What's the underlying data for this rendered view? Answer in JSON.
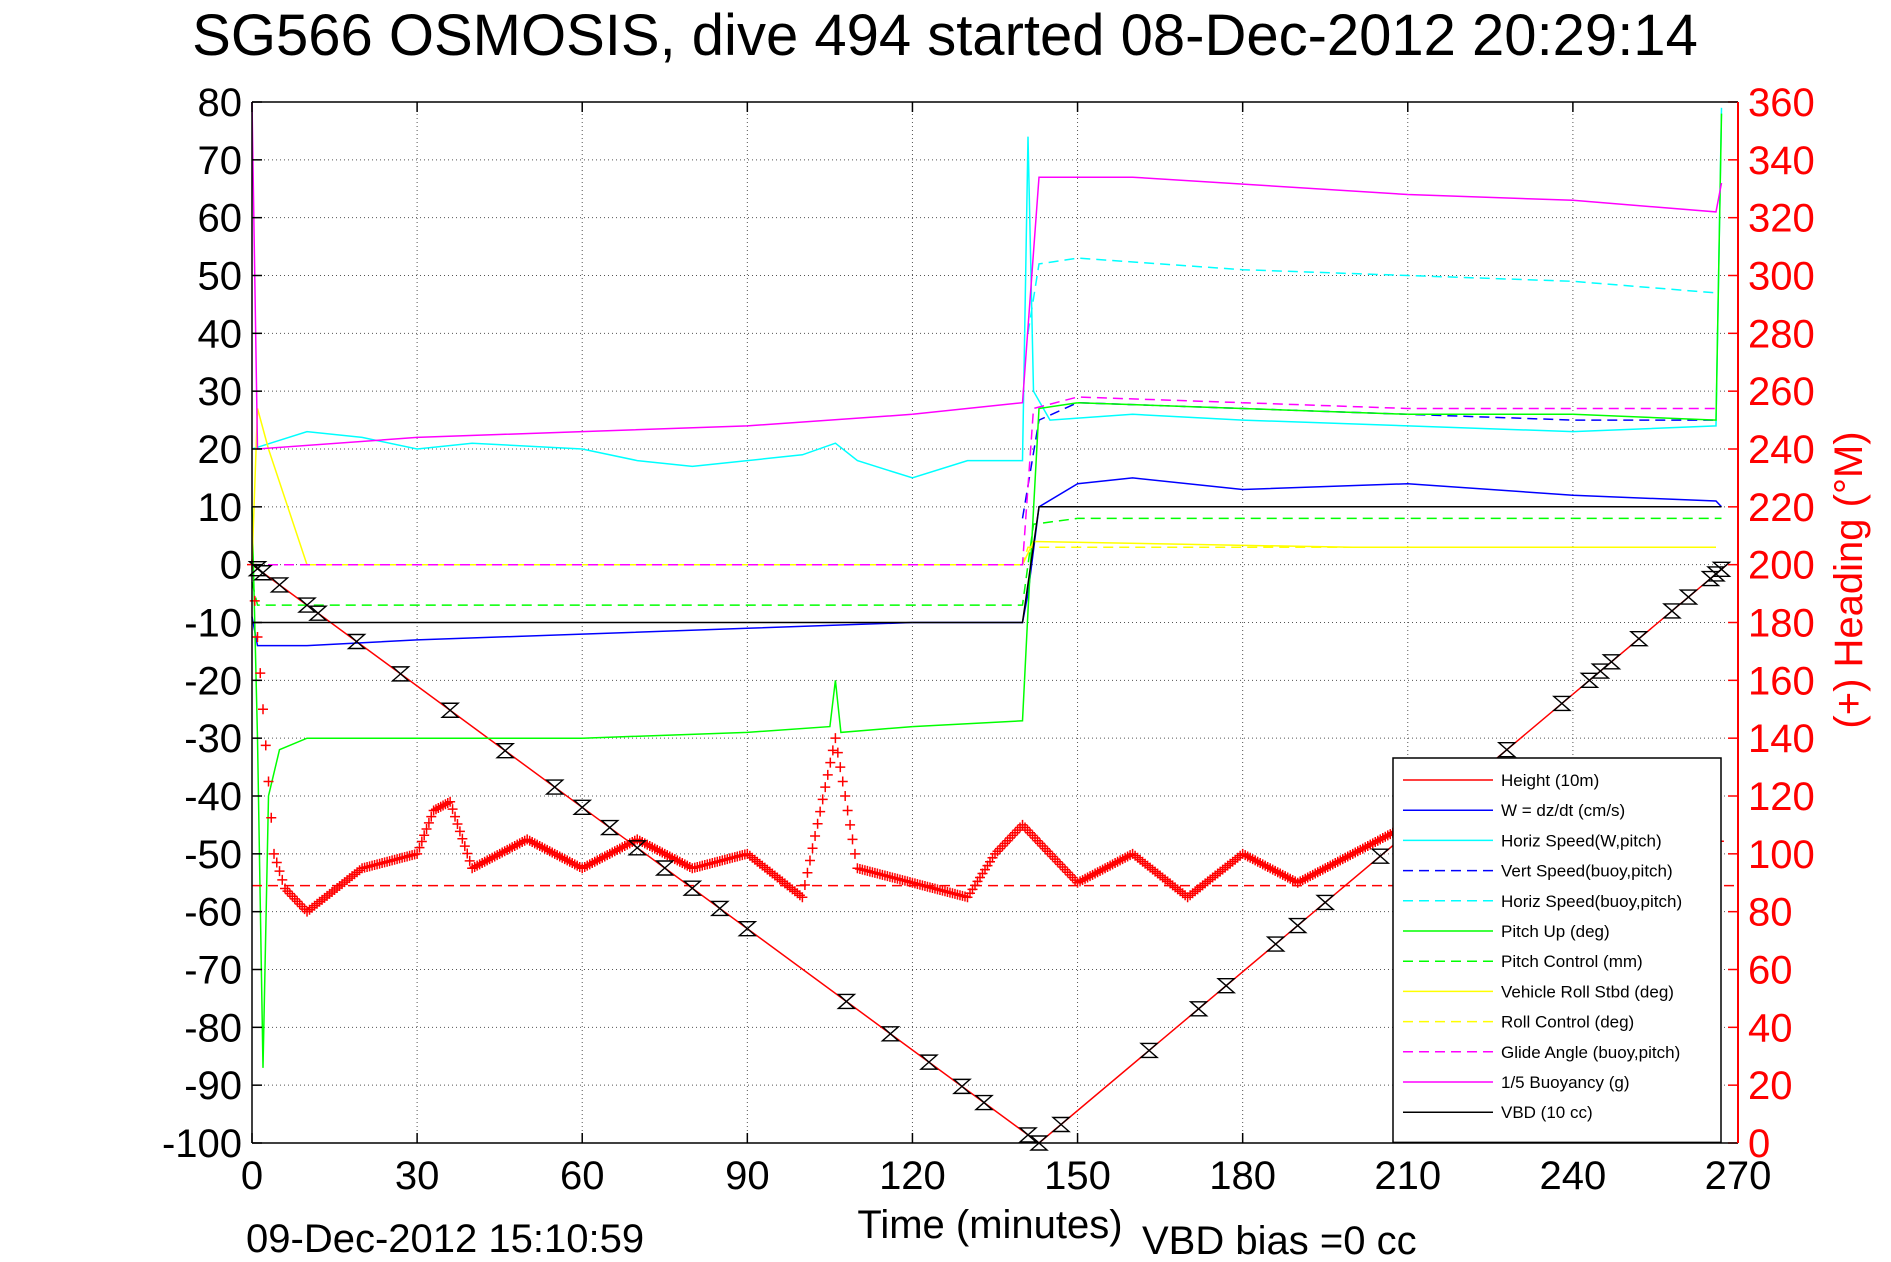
{
  "chart_data": {
    "type": "line",
    "title": "SG566 OSMOSIS, dive 494 started 08-Dec-2012 20:29:14",
    "xlabel": "Time (minutes)",
    "ylabel": "",
    "y2label": "(+) Heading (°M)",
    "footer_left": "09-Dec-2012 15:10:59",
    "footer_right": "VBD bias =0 cc",
    "xlim": [
      0,
      270
    ],
    "ylim": [
      -100,
      80
    ],
    "y2lim": [
      0,
      360
    ],
    "xticks": [
      "0",
      "30",
      "60",
      "90",
      "120",
      "150",
      "180",
      "210",
      "240",
      "270"
    ],
    "yticks": [
      "80",
      "70",
      "60",
      "50",
      "40",
      "30",
      "20",
      "10",
      "0",
      "-10",
      "-20",
      "-30",
      "-40",
      "-50",
      "-60",
      "-70",
      "-80",
      "-90",
      "-100"
    ],
    "y2ticks": [
      "360",
      "340",
      "320",
      "300",
      "280",
      "260",
      "240",
      "220",
      "200",
      "180",
      "160",
      "140",
      "120",
      "100",
      "80",
      "60",
      "40",
      "20",
      "0"
    ],
    "grid": true,
    "legend_position": "bottom-right",
    "series": [
      {
        "name": "Height (10m)",
        "color": "#ff0000",
        "style": "solid",
        "points": [
          [
            0,
            0
          ],
          [
            143,
            -100
          ],
          [
            268,
            0
          ]
        ]
      },
      {
        "name": "W = dz/dt (cm/s)",
        "color": "#0000ff",
        "style": "solid",
        "points": [
          [
            0,
            -9
          ],
          [
            1,
            -14
          ],
          [
            10,
            -14
          ],
          [
            30,
            -13
          ],
          [
            60,
            -12
          ],
          [
            90,
            -11
          ],
          [
            120,
            -10
          ],
          [
            140,
            -10
          ],
          [
            141,
            -5
          ],
          [
            143,
            10
          ],
          [
            150,
            14
          ],
          [
            160,
            15
          ],
          [
            180,
            13
          ],
          [
            210,
            14
          ],
          [
            240,
            12
          ],
          [
            266,
            11
          ],
          [
            267,
            10
          ]
        ]
      },
      {
        "name": "Horiz Speed(W,pitch)",
        "color": "#00ffff",
        "style": "solid",
        "points": [
          [
            0,
            20
          ],
          [
            10,
            23
          ],
          [
            20,
            22
          ],
          [
            30,
            20
          ],
          [
            40,
            21
          ],
          [
            60,
            20
          ],
          [
            70,
            18
          ],
          [
            80,
            17
          ],
          [
            90,
            18
          ],
          [
            100,
            19
          ],
          [
            106,
            21
          ],
          [
            110,
            18
          ],
          [
            120,
            15
          ],
          [
            130,
            18
          ],
          [
            140,
            18
          ],
          [
            141,
            74
          ],
          [
            142,
            30
          ],
          [
            145,
            25
          ],
          [
            160,
            26
          ],
          [
            180,
            25
          ],
          [
            210,
            24
          ],
          [
            240,
            23
          ],
          [
            266,
            24
          ],
          [
            267,
            79
          ]
        ]
      },
      {
        "name": "Vert Speed(buoy,pitch)",
        "color": "#0000ff",
        "style": "dashed",
        "points": [
          [
            140,
            8
          ],
          [
            143,
            25
          ],
          [
            150,
            28
          ],
          [
            180,
            27
          ],
          [
            210,
            26
          ],
          [
            240,
            25
          ],
          [
            266,
            25
          ]
        ]
      },
      {
        "name": "Horiz Speed(buoy,pitch)",
        "color": "#00ffff",
        "style": "dashed",
        "points": [
          [
            141,
            40
          ],
          [
            143,
            52
          ],
          [
            150,
            53
          ],
          [
            180,
            51
          ],
          [
            210,
            50
          ],
          [
            240,
            49
          ],
          [
            266,
            47
          ]
        ]
      },
      {
        "name": "Pitch Up (deg)",
        "color": "#00ff00",
        "style": "solid",
        "points": [
          [
            0,
            10
          ],
          [
            1,
            -30
          ],
          [
            2,
            -87
          ],
          [
            3,
            -40
          ],
          [
            5,
            -32
          ],
          [
            10,
            -30
          ],
          [
            30,
            -30
          ],
          [
            60,
            -30
          ],
          [
            90,
            -29
          ],
          [
            105,
            -28
          ],
          [
            106,
            -20
          ],
          [
            107,
            -29
          ],
          [
            120,
            -28
          ],
          [
            140,
            -27
          ],
          [
            141,
            -8
          ],
          [
            143,
            27
          ],
          [
            150,
            28
          ],
          [
            180,
            27
          ],
          [
            210,
            26
          ],
          [
            240,
            26
          ],
          [
            266,
            25
          ],
          [
            267,
            78
          ]
        ]
      },
      {
        "name": "Pitch Control (mm)",
        "color": "#00ff00",
        "style": "dashed",
        "points": [
          [
            0,
            -3
          ],
          [
            1,
            -7
          ],
          [
            60,
            -7
          ],
          [
            140,
            -7
          ],
          [
            142,
            7
          ],
          [
            150,
            8
          ],
          [
            200,
            8
          ],
          [
            240,
            8
          ],
          [
            267,
            8
          ]
        ]
      },
      {
        "name": "Vehicle Roll Stbd (deg)",
        "color": "#ffff00",
        "style": "solid",
        "points": [
          [
            0,
            0
          ],
          [
            1,
            27
          ],
          [
            3,
            20
          ],
          [
            10,
            0
          ],
          [
            140,
            0
          ],
          [
            142,
            4
          ],
          [
            200,
            3
          ],
          [
            266,
            3
          ]
        ]
      },
      {
        "name": "Roll Control (deg)",
        "color": "#ffff00",
        "style": "dashed",
        "points": [
          [
            0,
            0
          ],
          [
            140,
            0
          ],
          [
            141,
            3
          ],
          [
            266,
            3
          ]
        ]
      },
      {
        "name": "Glide Angle (buoy,pitch)",
        "color": "#ff00ff",
        "style": "dashed",
        "points": [
          [
            0,
            0
          ],
          [
            140,
            0
          ],
          [
            142,
            27
          ],
          [
            150,
            29
          ],
          [
            180,
            28
          ],
          [
            210,
            27
          ],
          [
            240,
            27
          ],
          [
            266,
            27
          ]
        ]
      },
      {
        "name": "1/5 Buoyancy (g)",
        "color": "#ff00ff",
        "style": "solid",
        "points": [
          [
            0,
            80
          ],
          [
            1,
            20
          ],
          [
            30,
            22
          ],
          [
            60,
            23
          ],
          [
            90,
            24
          ],
          [
            120,
            26
          ],
          [
            140,
            28
          ],
          [
            143,
            67
          ],
          [
            160,
            67
          ],
          [
            210,
            64
          ],
          [
            240,
            63
          ],
          [
            266,
            61
          ],
          [
            267,
            66
          ]
        ]
      },
      {
        "name": "VBD (10 cc)",
        "color": "#000000",
        "style": "solid",
        "points": [
          [
            0,
            -10
          ],
          [
            140,
            -10
          ],
          [
            143,
            10
          ],
          [
            267,
            10
          ]
        ]
      },
      {
        "name": "(+) Heading (°M)",
        "color": "#ff0000",
        "style": "markers",
        "axis": "right",
        "points": [
          [
            0,
            200
          ],
          [
            2,
            150
          ],
          [
            4,
            100
          ],
          [
            6,
            88
          ],
          [
            10,
            80
          ],
          [
            20,
            95
          ],
          [
            30,
            100
          ],
          [
            33,
            115
          ],
          [
            36,
            118
          ],
          [
            40,
            95
          ],
          [
            50,
            105
          ],
          [
            60,
            95
          ],
          [
            70,
            105
          ],
          [
            80,
            95
          ],
          [
            90,
            100
          ],
          [
            100,
            85
          ],
          [
            106,
            140
          ],
          [
            110,
            95
          ],
          [
            120,
            90
          ],
          [
            130,
            85
          ],
          [
            135,
            100
          ],
          [
            140,
            110
          ],
          [
            150,
            90
          ],
          [
            160,
            100
          ],
          [
            170,
            85
          ],
          [
            180,
            100
          ],
          [
            190,
            90
          ],
          [
            200,
            100
          ],
          [
            210,
            110
          ],
          [
            220,
            95
          ],
          [
            230,
            100
          ],
          [
            240,
            90
          ],
          [
            250,
            100
          ],
          [
            260,
            95
          ],
          [
            267,
            105
          ]
        ]
      },
      {
        "name": "",
        "color": "#ff0000",
        "style": "dashed",
        "axis": "right",
        "points": [
          [
            0,
            89
          ],
          [
            270,
            89
          ]
        ]
      }
    ],
    "markers": {
      "symbol": "hourglass",
      "color": "#000000",
      "x": [
        1,
        2,
        5,
        10,
        12,
        19,
        27,
        36,
        46,
        55,
        60,
        65,
        70,
        75,
        80,
        85,
        90,
        108,
        116,
        123,
        129,
        133,
        141,
        143,
        147,
        163,
        172,
        177,
        186,
        190,
        195,
        205,
        228,
        238,
        243,
        245,
        247,
        252,
        258,
        261,
        265,
        266,
        267
      ]
    }
  }
}
